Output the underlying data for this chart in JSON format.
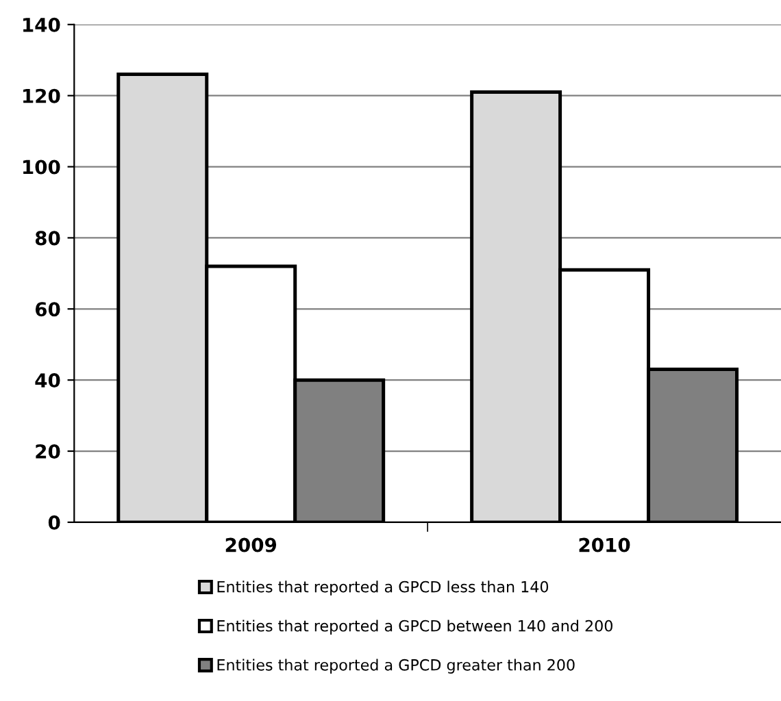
{
  "chart_data": {
    "type": "bar",
    "categories": [
      "2009",
      "2010"
    ],
    "series": [
      {
        "name": "Entities that reported a GPCD less than 140",
        "color": "#d9d9d9",
        "values": [
          126,
          121
        ]
      },
      {
        "name": "Entities that reported a GPCD between 140 and 200",
        "color": "#ffffff",
        "values": [
          72,
          71
        ]
      },
      {
        "name": "Entities that reported a GPCD greater than 200",
        "color": "#808080",
        "values": [
          40,
          43
        ]
      }
    ],
    "ylim": [
      0,
      140
    ],
    "yticks": [
      0,
      20,
      40,
      60,
      80,
      100,
      120,
      140
    ],
    "grid": "y",
    "legend": "bottom"
  }
}
